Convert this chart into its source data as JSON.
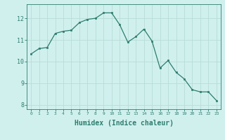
{
  "x": [
    0,
    1,
    2,
    3,
    4,
    5,
    6,
    7,
    8,
    9,
    10,
    11,
    12,
    13,
    14,
    15,
    16,
    17,
    18,
    19,
    20,
    21,
    22,
    23
  ],
  "y": [
    10.35,
    10.6,
    10.65,
    11.3,
    11.4,
    11.45,
    11.8,
    11.95,
    12.0,
    12.25,
    12.25,
    11.7,
    10.9,
    11.15,
    11.5,
    10.95,
    9.7,
    10.05,
    9.5,
    9.2,
    8.7,
    8.6,
    8.6,
    8.2
  ],
  "line_color": "#2e7d6e",
  "marker": "s",
  "marker_size": 2.0,
  "bg_color": "#d0f0ee",
  "grid_color": "#b8dcd8",
  "axis_color": "#2e7d6e",
  "xlabel": "Humidex (Indice chaleur)",
  "xlabel_fontsize": 7,
  "ylabel_ticks": [
    8,
    9,
    10,
    11,
    12
  ],
  "xlim": [
    -0.5,
    23.5
  ],
  "ylim": [
    7.8,
    12.65
  ],
  "title": ""
}
